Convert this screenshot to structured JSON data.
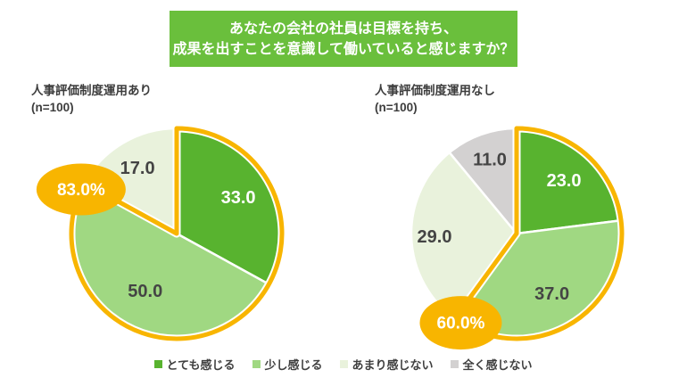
{
  "header": {
    "title_lines": [
      "あなたの会社の社員は目標を持ち、",
      "成果を出すことを意識して働いていると感じますか？"
    ],
    "bg_color": "#6abf3c",
    "text_color": "#ffffff"
  },
  "chart_data": [
    {
      "type": "pie",
      "title": "人事評価制度運用あり",
      "subtitle": "(n=100)",
      "categories": [
        "とても感じる",
        "少し感じる",
        "あまり感じない"
      ],
      "values": [
        33.0,
        50.0,
        17.0
      ],
      "labels": [
        "33.0",
        "50.0",
        "17.0"
      ],
      "colors": [
        "#58b32f",
        "#a0d882",
        "#e9f2dc"
      ],
      "label_colors": [
        "#ffffff",
        "#444444",
        "#444444"
      ],
      "start_angle": "top",
      "direction": "clockwise",
      "label_distance": [
        0.68,
        0.62,
        0.73
      ],
      "highlight": {
        "slice_count": 2,
        "total_label": "83.0%",
        "color": "#f8b500",
        "badge_text_color": "#ffffff"
      }
    },
    {
      "type": "pie",
      "title": "人事評価制度運用なし",
      "subtitle": "(n=100)",
      "categories": [
        "とても感じる",
        "少し感じる",
        "あまり感じない",
        "全く感じない"
      ],
      "values": [
        23.0,
        37.0,
        29.0,
        11.0
      ],
      "labels": [
        "23.0",
        "37.0",
        "29.0",
        "11.0"
      ],
      "colors": [
        "#58b32f",
        "#a0d882",
        "#e9f2dc",
        "#d3d1d1"
      ],
      "label_colors": [
        "#ffffff",
        "#444444",
        "#444444",
        "#444444"
      ],
      "start_angle": "top",
      "direction": "clockwise",
      "label_distance": [
        0.68,
        0.66,
        0.78,
        0.75
      ],
      "highlight": {
        "slice_count": 2,
        "total_label": "60.0%",
        "color": "#f8b500",
        "badge_text_color": "#ffffff"
      }
    }
  ],
  "legend": {
    "items": [
      {
        "label": "とても感じる",
        "color": "#58b32f"
      },
      {
        "label": "少し感じる",
        "color": "#a0d882"
      },
      {
        "label": "あまり感じない",
        "color": "#e9f2dc"
      },
      {
        "label": "全く感じない",
        "color": "#d3d1d1"
      }
    ]
  }
}
